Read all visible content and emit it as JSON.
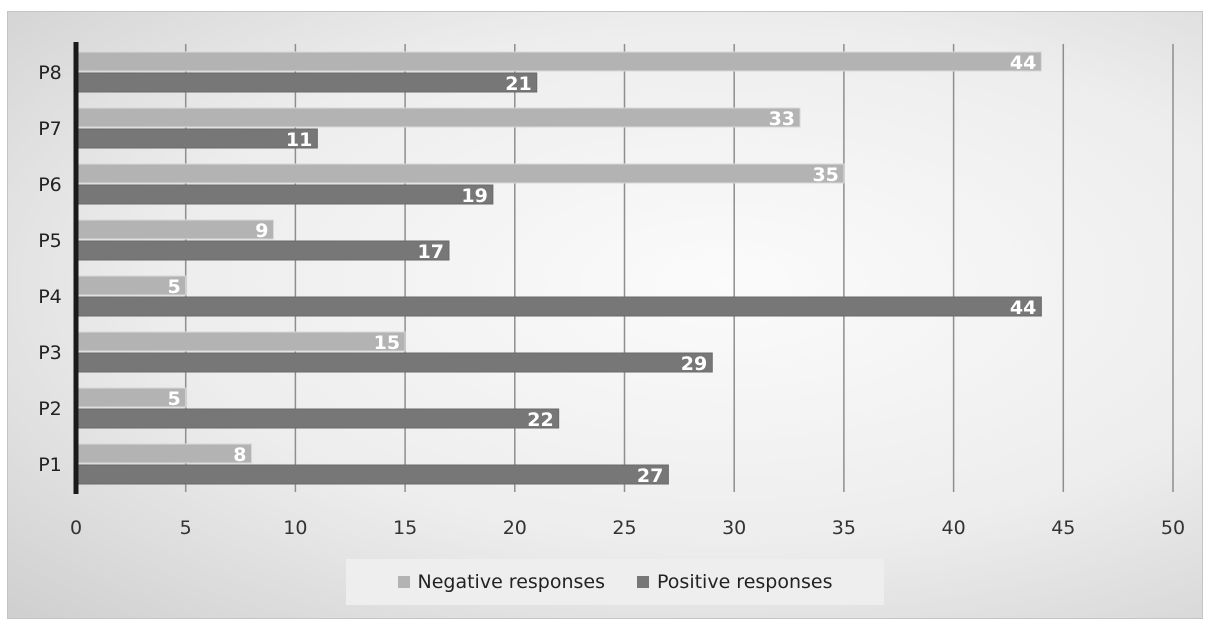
{
  "chart_data": {
    "type": "bar",
    "orientation": "horizontal",
    "categories": [
      "P1",
      "P2",
      "P3",
      "P4",
      "P5",
      "P6",
      "P7",
      "P8"
    ],
    "series": [
      {
        "name": "Negative responses",
        "color": "#b3b3b3",
        "values": [
          8,
          5,
          15,
          5,
          9,
          35,
          33,
          44
        ]
      },
      {
        "name": "Positive responses",
        "color": "#777777",
        "values": [
          27,
          22,
          29,
          44,
          17,
          19,
          11,
          21
        ]
      }
    ],
    "xlim": [
      0,
      50
    ],
    "xticks": [
      0,
      5,
      10,
      15,
      20,
      25,
      30,
      35,
      40,
      45,
      50
    ],
    "grid": true,
    "legend_position": "bottom",
    "title": "",
    "xlabel": "",
    "ylabel": ""
  }
}
